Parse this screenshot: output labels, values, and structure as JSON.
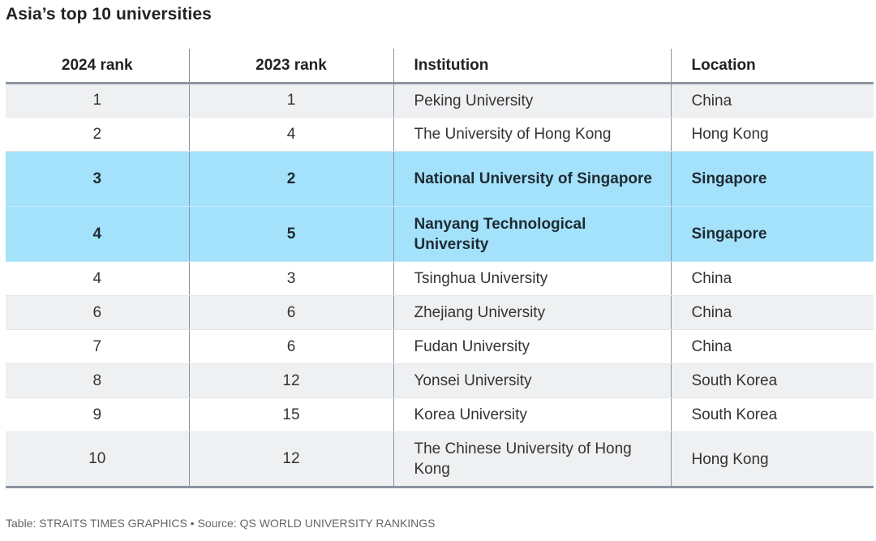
{
  "title": "Asia’s top 10 universities",
  "table": {
    "headers": [
      "2024 rank",
      "2023 rank",
      "Institution",
      "Location"
    ],
    "rows": [
      {
        "rank_2024": "1",
        "rank_2023": "1",
        "institution": "Peking University",
        "location": "China"
      },
      {
        "rank_2024": "2",
        "rank_2023": "4",
        "institution": "The University of Hong Kong",
        "location": "Hong Kong"
      },
      {
        "rank_2024": "3",
        "rank_2023": "2",
        "institution": "National University of Singapore",
        "location": "Singapore"
      },
      {
        "rank_2024": "4",
        "rank_2023": "5",
        "institution": "Nanyang Technological University",
        "location": "Singapore"
      },
      {
        "rank_2024": "4",
        "rank_2023": "3",
        "institution": "Tsinghua University",
        "location": "China"
      },
      {
        "rank_2024": "6",
        "rank_2023": "6",
        "institution": "Zhejiang University",
        "location": "China"
      },
      {
        "rank_2024": "7",
        "rank_2023": "6",
        "institution": "Fudan University",
        "location": "China"
      },
      {
        "rank_2024": "8",
        "rank_2023": "12",
        "institution": "Yonsei University",
        "location": "South Korea"
      },
      {
        "rank_2024": "9",
        "rank_2023": "15",
        "institution": "Korea University",
        "location": "South Korea"
      },
      {
        "rank_2024": "10",
        "rank_2023": "12",
        "institution": "The Chinese University of Hong Kong",
        "location": "Hong Kong"
      }
    ]
  },
  "colors": {
    "highlight_row": "#a4e2fb",
    "shaded_row": "#eef0f2",
    "rule": "#8c95a0"
  },
  "footer": "Table: STRAITS TIMES GRAPHICS • Source: QS WORLD UNIVERSITY RANKINGS"
}
